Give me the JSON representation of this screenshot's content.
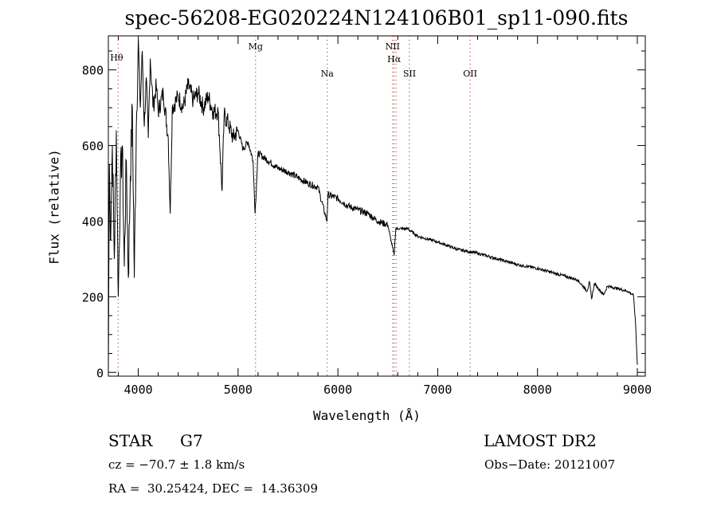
{
  "chart_data": {
    "type": "line",
    "title": "spec-56208-EG020224N124106B01_sp11-090.fits",
    "xlabel": "Wavelength (Å)",
    "ylabel": "Flux (relative)",
    "xlim": [
      3700,
      9080
    ],
    "ylim": [
      -10,
      890
    ],
    "xticks": [
      4000,
      5000,
      6000,
      7000,
      8000,
      9000
    ],
    "yticks": [
      0,
      200,
      400,
      600,
      800
    ],
    "grid": false,
    "lines": [
      {
        "label": "Hθ",
        "x": 3798
      },
      {
        "label": "Mg",
        "x": 5175
      },
      {
        "label": "Na",
        "x": 5893
      },
      {
        "label": "NII",
        "x": 6548
      },
      {
        "label": "Hα",
        "x": 6563
      },
      {
        "label": "NII",
        "x": 6583
      },
      {
        "label": "SII",
        "x": 6717
      },
      {
        "label": "OII",
        "x": 7325
      }
    ],
    "series": [
      {
        "name": "flux",
        "x": [
          3700,
          3710,
          3720,
          3740,
          3760,
          3780,
          3800,
          3820,
          3840,
          3860,
          3880,
          3900,
          3920,
          3940,
          3960,
          3980,
          4000,
          4020,
          4040,
          4060,
          4080,
          4100,
          4120,
          4150,
          4180,
          4200,
          4250,
          4300,
          4320,
          4340,
          4400,
          4450,
          4500,
          4550,
          4600,
          4650,
          4700,
          4750,
          4800,
          4840,
          4860,
          4900,
          4950,
          5000,
          5050,
          5100,
          5150,
          5170,
          5200,
          5300,
          5400,
          5500,
          5600,
          5700,
          5800,
          5890,
          5900,
          6000,
          6100,
          6200,
          6300,
          6400,
          6500,
          6563,
          6580,
          6700,
          6800,
          7000,
          7200,
          7400,
          7600,
          7800,
          8000,
          8200,
          8400,
          8498,
          8520,
          8542,
          8570,
          8662,
          8700,
          8800,
          8900,
          8960,
          8980,
          9000
        ],
        "y": [
          0,
          550,
          350,
          600,
          300,
          640,
          200,
          500,
          600,
          280,
          560,
          250,
          520,
          700,
          250,
          650,
          880,
          700,
          850,
          650,
          780,
          620,
          830,
          700,
          760,
          690,
          740,
          620,
          420,
          700,
          730,
          700,
          760,
          720,
          740,
          700,
          730,
          690,
          690,
          480,
          680,
          660,
          620,
          640,
          590,
          610,
          560,
          420,
          580,
          560,
          540,
          530,
          515,
          500,
          490,
          400,
          470,
          460,
          440,
          430,
          420,
          400,
          390,
          310,
          380,
          380,
          360,
          345,
          325,
          315,
          300,
          285,
          275,
          260,
          245,
          215,
          240,
          195,
          235,
          205,
          228,
          222,
          215,
          205,
          140,
          20
        ]
      }
    ]
  },
  "footer": {
    "class_label": "STAR",
    "subclass": "G7",
    "survey": "LAMOST DR2",
    "cz": "cz = −70.7 ± 1.8 km/s",
    "obs_date": "Obs−Date: 20121007",
    "coords": "RA =  30.25424, DEC =  14.36309"
  }
}
